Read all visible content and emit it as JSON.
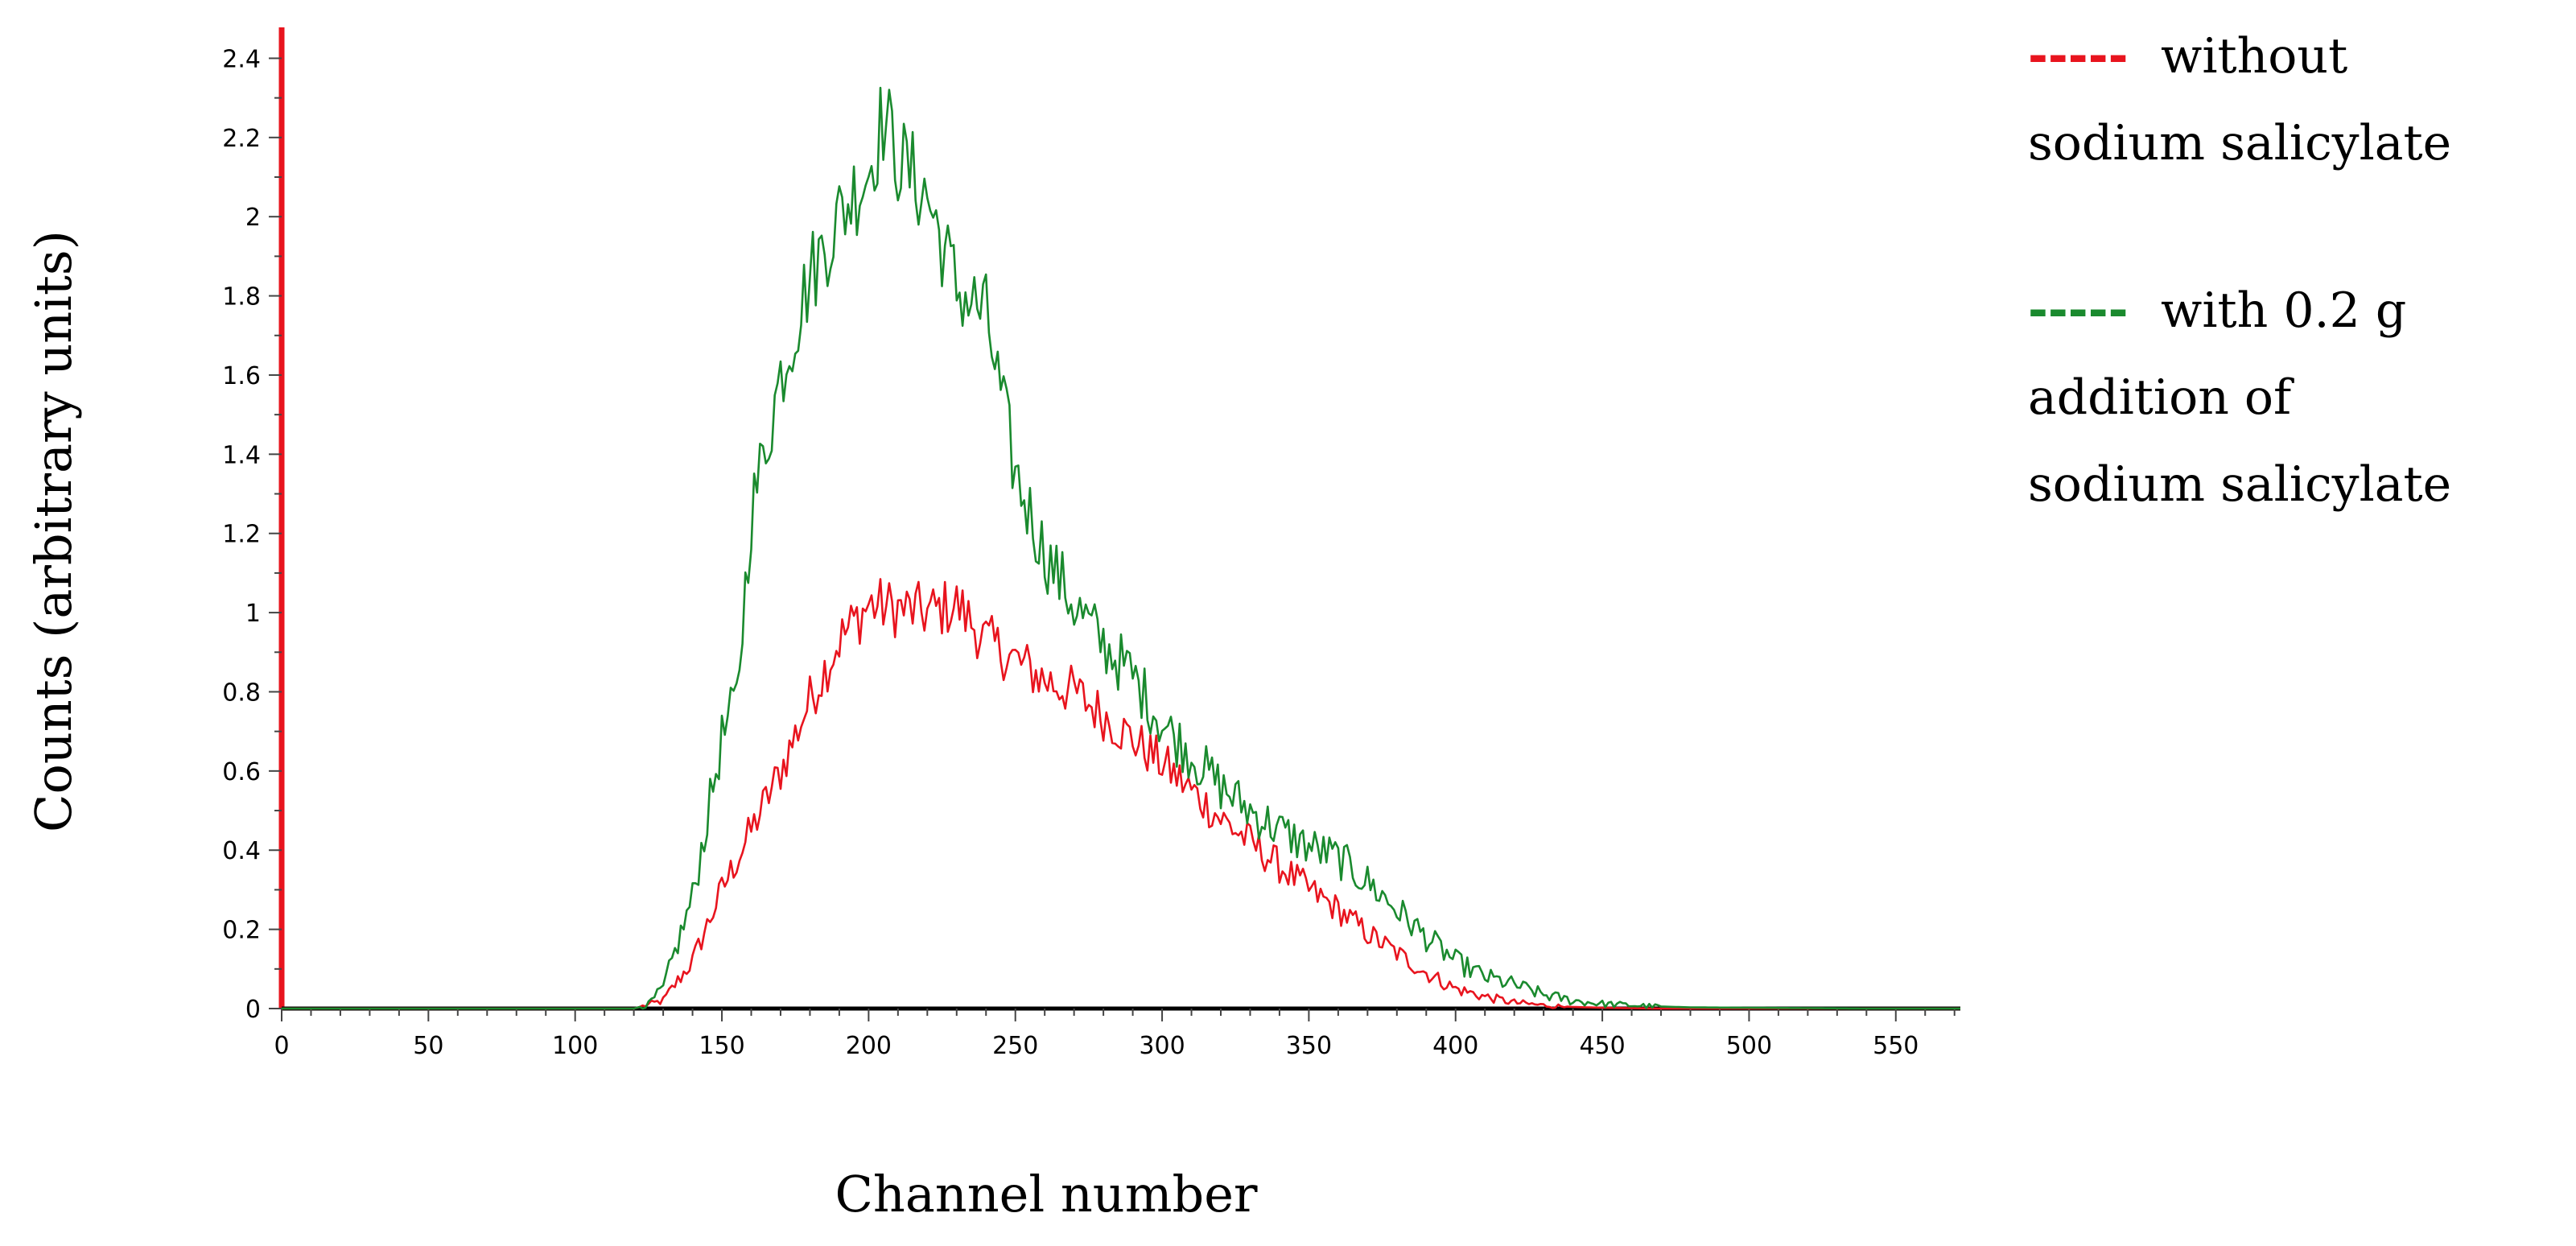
{
  "chart_data": {
    "type": "line",
    "title": "",
    "xlabel": "Channel number",
    "ylabel": "Counts (arbitrary units)",
    "xlim": [
      0,
      572
    ],
    "ylim": [
      0,
      2.47
    ],
    "x_ticks": [
      0,
      50,
      100,
      150,
      200,
      250,
      300,
      350,
      400,
      450,
      500,
      550
    ],
    "x_tick_labels": [
      "0",
      "50",
      "100",
      "150",
      "200",
      "250",
      "300",
      "350",
      "400",
      "450",
      "500",
      "550"
    ],
    "y_ticks": [
      0,
      0.2,
      0.4,
      0.6,
      0.8,
      1,
      1.2,
      1.4,
      1.6,
      1.8,
      2,
      2.2,
      2.4
    ],
    "y_tick_labels": [
      "0",
      "0.2",
      "0.4",
      "0.6",
      "0.8",
      "1",
      "1.2",
      "1.4",
      "1.6",
      "1.8",
      "2",
      "2.2",
      "2.4"
    ],
    "grid": false,
    "legend_position": "right, outside plot",
    "series": [
      {
        "name": "without sodium salicylate",
        "legend_lines": [
          "without",
          "sodium salicylate"
        ],
        "color": "#e8141e",
        "x": [
          0,
          120,
          130,
          140,
          150,
          160,
          170,
          180,
          190,
          200,
          210,
          220,
          230,
          240,
          250,
          260,
          270,
          280,
          290,
          300,
          310,
          320,
          330,
          340,
          350,
          360,
          370,
          380,
          390,
          400,
          410,
          420,
          430,
          440,
          450,
          460,
          470,
          500,
          572
        ],
        "y": [
          0,
          0,
          0.02,
          0.12,
          0.3,
          0.45,
          0.6,
          0.78,
          0.93,
          1.02,
          1.01,
          1.0,
          1.02,
          0.93,
          0.88,
          0.83,
          0.8,
          0.74,
          0.68,
          0.62,
          0.55,
          0.48,
          0.42,
          0.36,
          0.3,
          0.25,
          0.19,
          0.14,
          0.09,
          0.05,
          0.03,
          0.015,
          0.008,
          0.004,
          0.002,
          0.001,
          0,
          0,
          0
        ]
      },
      {
        "name": "with 0.2 g addition of sodium salicylate",
        "legend_lines": [
          "with 0.2 g",
          "addition of",
          "sodium salicylate"
        ],
        "color": "#1a8a2e",
        "x": [
          0,
          120,
          125,
          130,
          140,
          150,
          155,
          160,
          170,
          180,
          190,
          200,
          205,
          210,
          220,
          230,
          240,
          250,
          260,
          270,
          280,
          290,
          300,
          310,
          320,
          330,
          340,
          350,
          360,
          370,
          380,
          390,
          400,
          410,
          420,
          430,
          440,
          450,
          460,
          470,
          480,
          500,
          520,
          540,
          572
        ],
        "y": [
          0,
          0,
          0.01,
          0.05,
          0.28,
          0.68,
          0.78,
          1.25,
          1.6,
          1.85,
          2.0,
          2.12,
          2.25,
          2.15,
          2.05,
          1.82,
          1.75,
          1.35,
          1.15,
          1.02,
          0.92,
          0.84,
          0.72,
          0.64,
          0.56,
          0.5,
          0.45,
          0.41,
          0.38,
          0.32,
          0.25,
          0.18,
          0.12,
          0.08,
          0.06,
          0.035,
          0.02,
          0.012,
          0.008,
          0.005,
          0.003,
          0.002,
          0.001,
          0,
          0
        ]
      }
    ]
  }
}
